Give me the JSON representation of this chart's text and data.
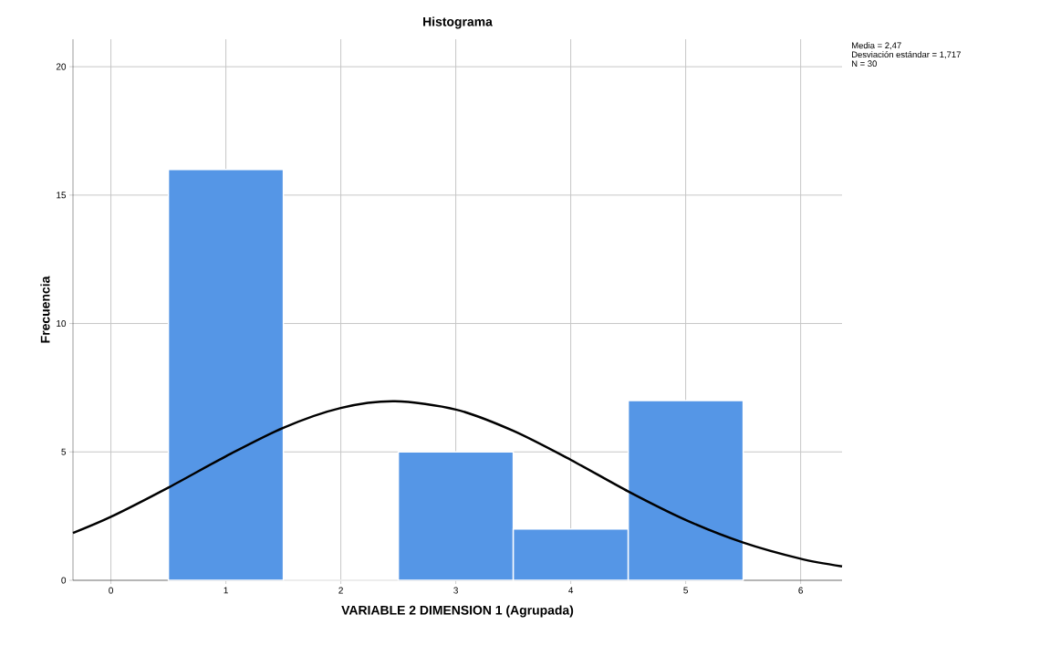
{
  "chart_data": {
    "type": "histogram",
    "title": "Histograma",
    "xlabel": "VARIABLE 2 DIMENSION 1 (Agrupada)",
    "ylabel": "Frecuencia",
    "bins": [
      0.5,
      1.5,
      2.5,
      3.5,
      4.5,
      5.5
    ],
    "values": [
      16,
      0,
      5,
      2,
      7
    ],
    "color": "#5596e6",
    "series": [
      {
        "type": "line",
        "color": "#000000",
        "x": [
          -0.33,
          0,
          0.5,
          1,
          1.5,
          2,
          2.47,
          3,
          3.5,
          4,
          4.5,
          5,
          5.5,
          6,
          6.36
        ],
        "values": [
          1.84,
          2.47,
          3.61,
          4.83,
          5.94,
          6.71,
          6.97,
          6.65,
          5.82,
          4.69,
          3.46,
          2.35,
          1.47,
          0.84,
          0.54
        ]
      }
    ],
    "xlim": [
      -0.33,
      6.36
    ],
    "ylim": [
      0,
      21.07
    ],
    "xticks": [
      0,
      1,
      2,
      3,
      4,
      5,
      6
    ],
    "yticks": [
      0,
      5,
      10,
      15,
      20
    ],
    "grid": true,
    "annotations": [
      "Media = 2,47",
      "Desviación estándar = 1,717",
      "N = 30"
    ]
  }
}
